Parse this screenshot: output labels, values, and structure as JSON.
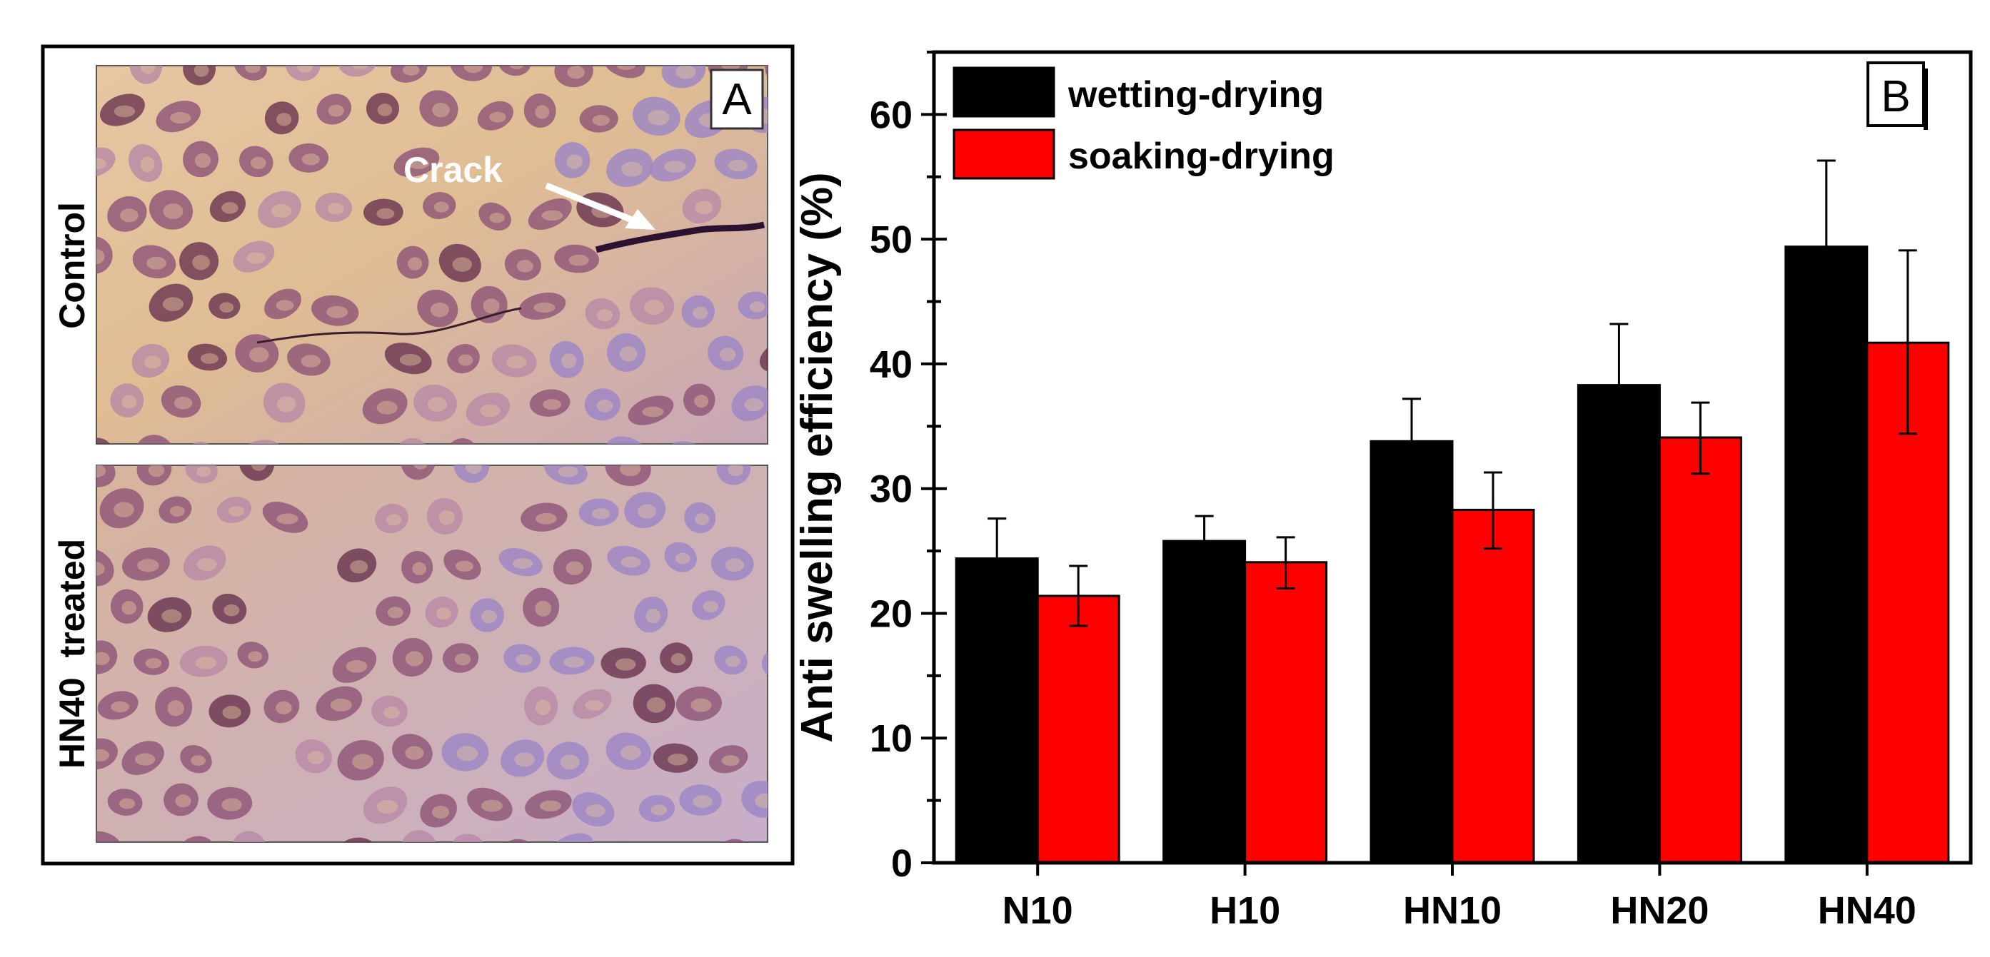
{
  "panel_a": {
    "label": "A",
    "top_image_label": "Control",
    "bottom_image_label": "HN40  treated",
    "annotation": "Crack",
    "microscopy_colors": {
      "background": "#e2c39d",
      "cell_dark": "#6b3650",
      "cell_mid": "#8f5578",
      "cell_light": "#b98aa6",
      "violet_haze": "#9c86c6"
    }
  },
  "panel_b": {
    "label": "B"
  },
  "chart_data": {
    "type": "bar",
    "title": "",
    "xlabel": "",
    "ylabel": "Anti swelling efficiency (%)",
    "ylim": [
      0,
      65
    ],
    "yticks": [
      0,
      10,
      20,
      30,
      40,
      50,
      60
    ],
    "minor_tick_step": 5,
    "categories": [
      "N10",
      "H10",
      "HN10",
      "HN20",
      "HN40"
    ],
    "legend_position": "top-left",
    "series": [
      {
        "name": "wetting-drying",
        "color": "#000000",
        "values": [
          24.4,
          25.8,
          33.8,
          38.3,
          49.4
        ],
        "error_upper": [
          27.6,
          27.8,
          37.2,
          43.2,
          56.3
        ]
      },
      {
        "name": "soaking-drying",
        "color": "#ff0000",
        "values": [
          21.4,
          24.1,
          28.3,
          34.1,
          41.7
        ],
        "error_upper": [
          23.8,
          26.1,
          31.3,
          36.9,
          49.1
        ],
        "error_lower": [
          19.0,
          22.0,
          25.2,
          31.2,
          34.4
        ]
      }
    ]
  }
}
